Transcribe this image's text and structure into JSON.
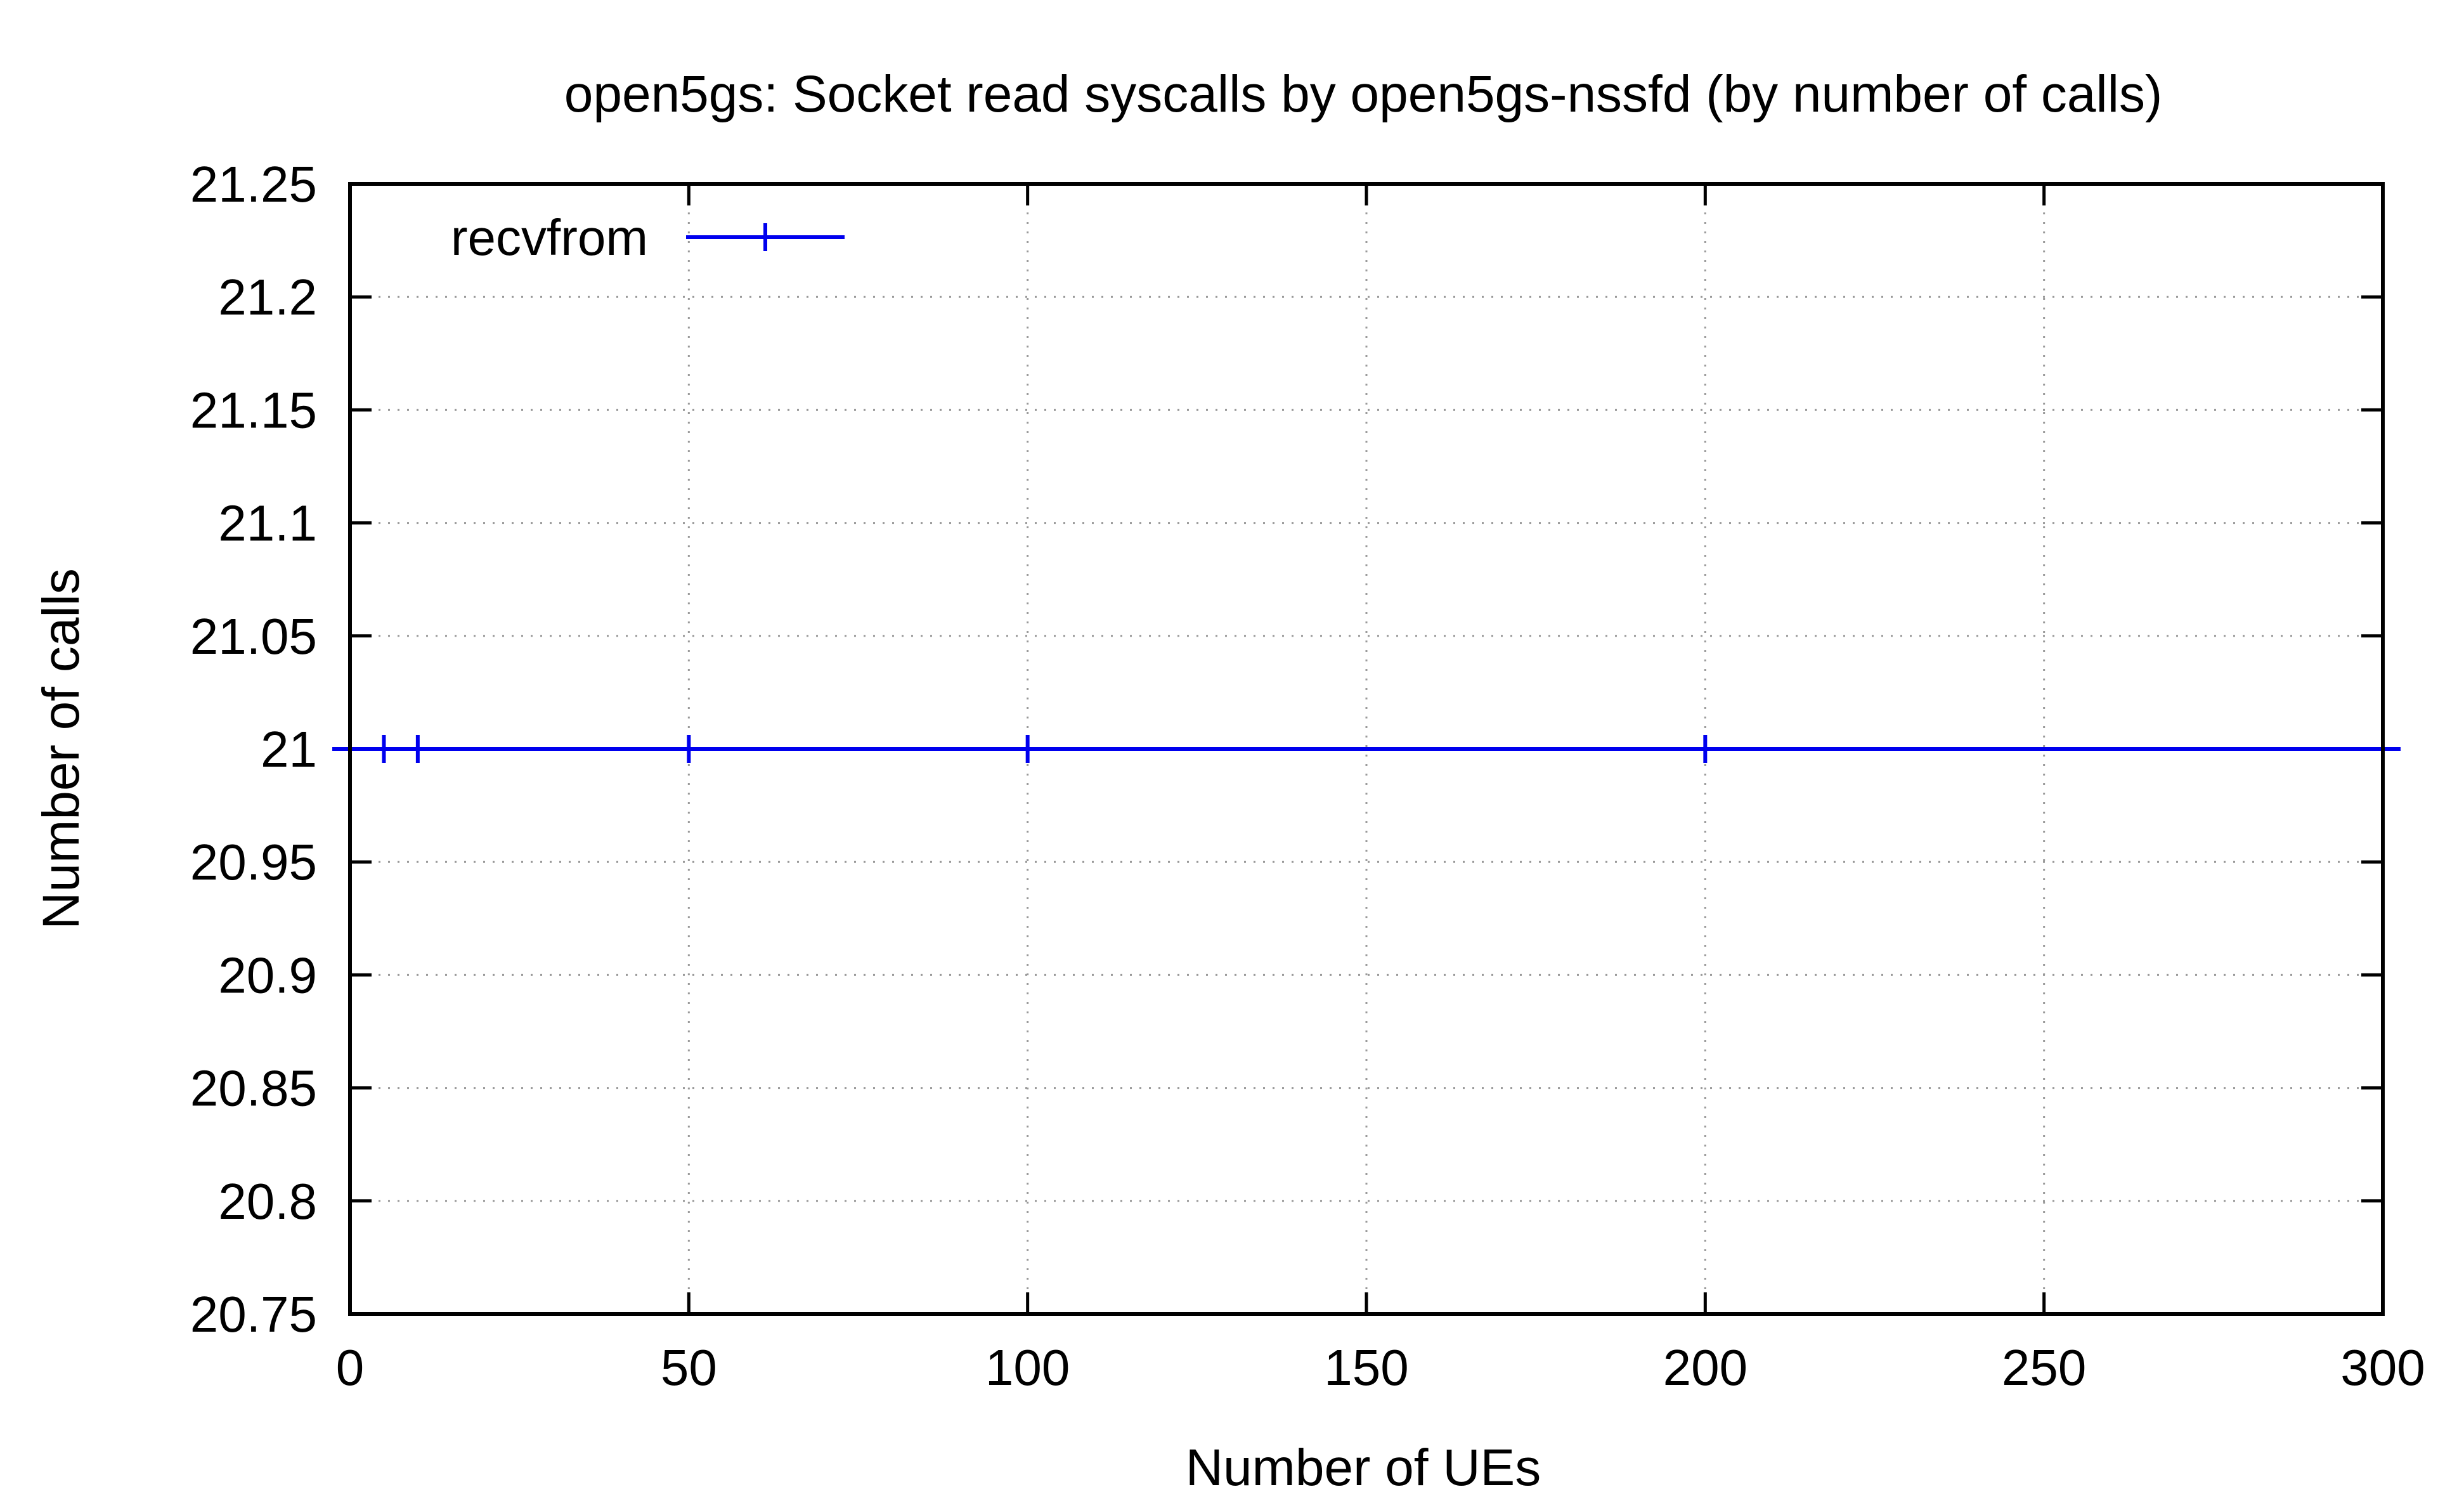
{
  "chart_data": {
    "type": "line",
    "title": "open5gs: Socket read syscalls by open5gs-nssfd (by number of calls)",
    "xlabel": "Number of UEs",
    "ylabel": "Number of calls",
    "xlim": [
      0,
      300
    ],
    "ylim": [
      20.75,
      21.25
    ],
    "x_ticks": [
      "0",
      "50",
      "100",
      "150",
      "200",
      "250",
      "300"
    ],
    "y_ticks": [
      "20.75",
      "20.8",
      "20.85",
      "20.9",
      "20.95",
      "21",
      "21.05",
      "21.1",
      "21.15",
      "21.2",
      "21.25"
    ],
    "grid": true,
    "legend_position": "top-left",
    "series": [
      {
        "name": "recvfrom",
        "color": "#0000ee",
        "x": [
          5,
          10,
          50,
          100,
          200,
          300
        ],
        "y": [
          21,
          21,
          21,
          21,
          21,
          21
        ]
      }
    ]
  }
}
